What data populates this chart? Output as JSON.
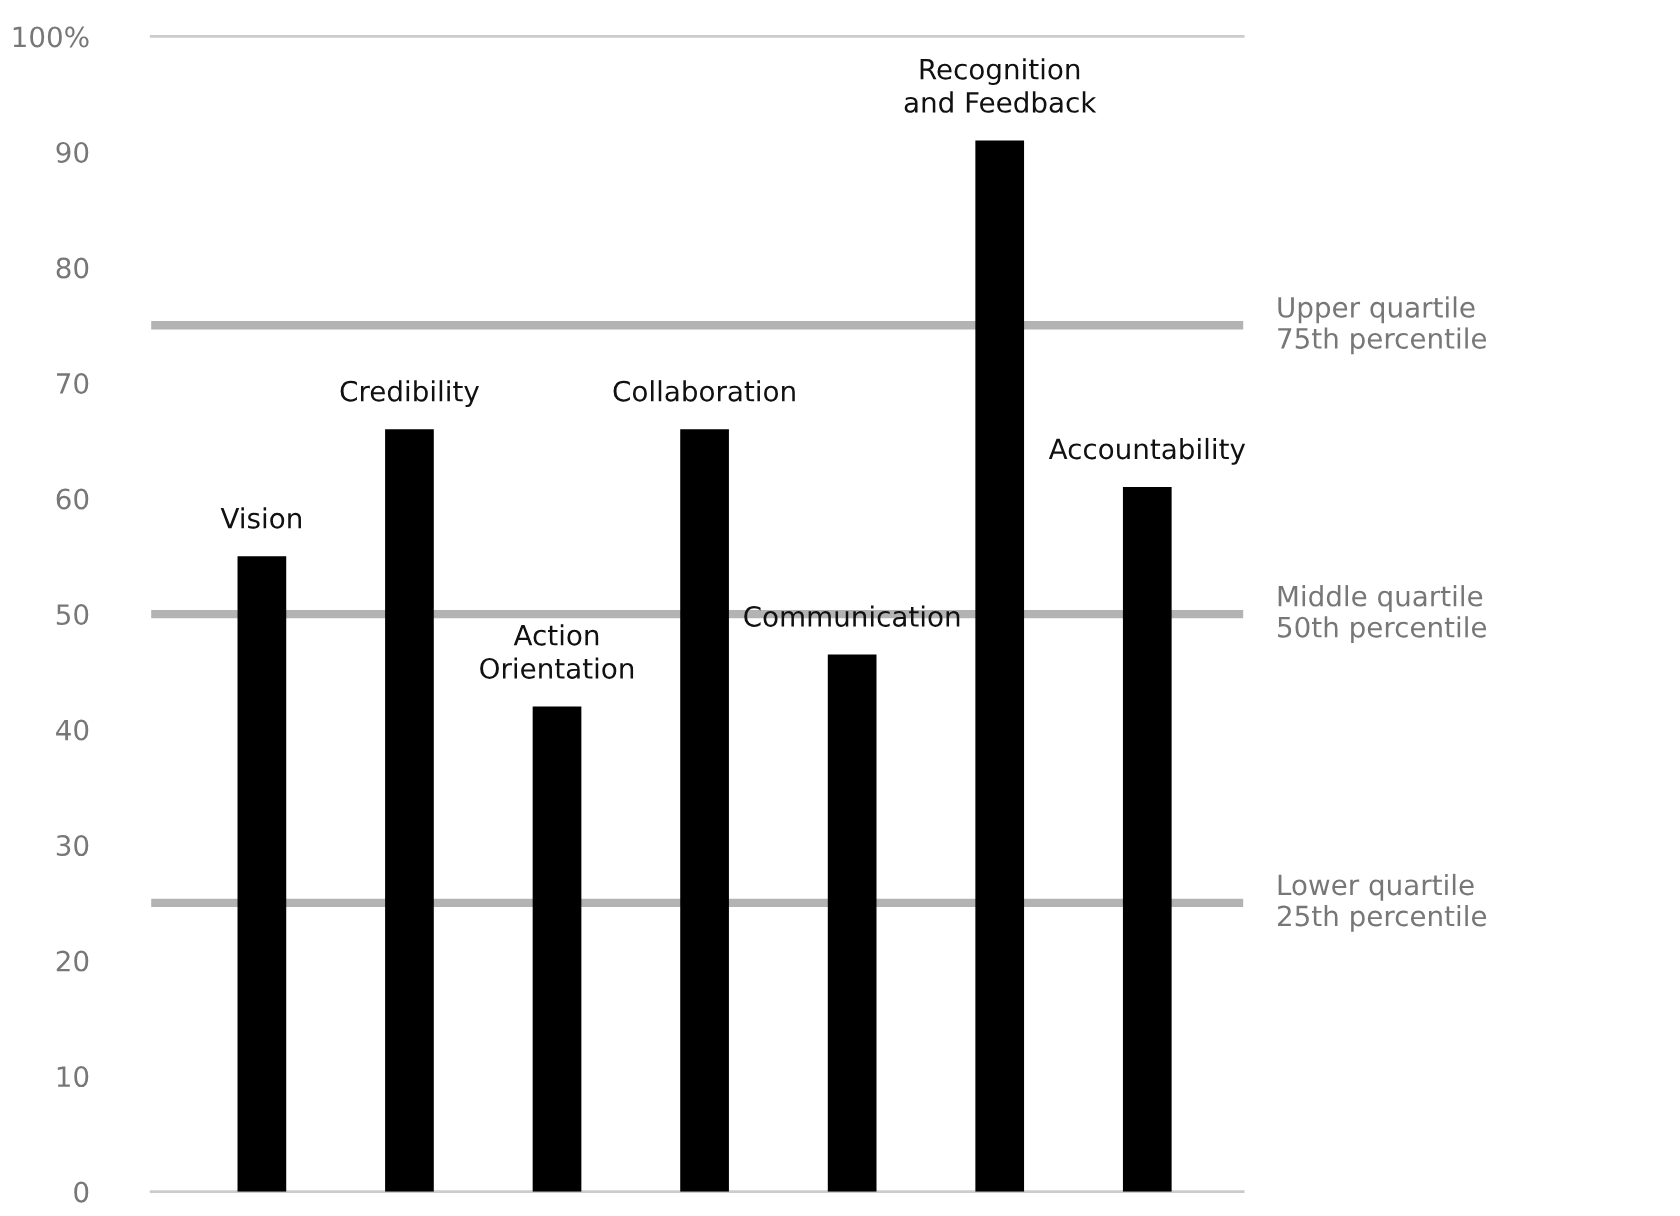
{
  "chart_data": {
    "type": "bar",
    "categories": [
      "Vision",
      "Credibility",
      "Action\nOrientation",
      "Collaboration",
      "Communication",
      "Recognition\nand Feedback",
      "Accountability"
    ],
    "values": [
      55,
      66,
      42,
      66,
      46.5,
      91,
      61
    ],
    "color": "#000000",
    "ylim": [
      0,
      100
    ],
    "yticks": [
      0,
      10,
      20,
      30,
      40,
      50,
      60,
      70,
      80,
      90,
      {
        "value": 100,
        "label": "100%"
      }
    ],
    "ref_lines": [
      {
        "axis": "y",
        "value": 75,
        "label": "Upper quartile\n75th percentile",
        "color": "#b3b3b3"
      },
      {
        "axis": "y",
        "value": 50,
        "label": "Middle quartile\n50th percentile",
        "color": "#b3b3b3"
      },
      {
        "axis": "y",
        "value": 25,
        "label": "Lower quartile\n25th percentile",
        "color": "#b3b3b3"
      }
    ]
  }
}
